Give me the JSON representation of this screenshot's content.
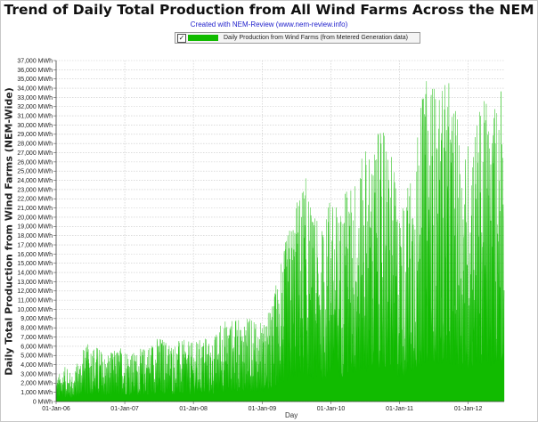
{
  "chart_data": {
    "type": "area",
    "title": "Trend of Daily Total Production from All Wind Farms Across the NEM",
    "subtitle": "Created with NEM-Review (www.nem-review.info)",
    "xlabel": "Day",
    "ylabel": "Daily Total Production from Wind Farms (NEM-Wide)",
    "ylim": [
      0,
      37000
    ],
    "xlim": [
      "2006-01-01",
      "2012-07-10"
    ],
    "x_ticks": [
      "01-Jan-06",
      "01-Jan-07",
      "01-Jan-08",
      "01-Jan-09",
      "01-Jan-10",
      "01-Jan-11",
      "01-Jan-12"
    ],
    "y_ticks": [
      "0 MWh",
      "1,000 MWh",
      "2,000 MWh",
      "3,000 MWh",
      "4,000 MWh",
      "5,000 MWh",
      "6,000 MWh",
      "7,000 MWh",
      "8,000 MWh",
      "9,000 MWh",
      "10,000 MWh",
      "11,000 MWh",
      "12,000 MWh",
      "13,000 MWh",
      "14,000 MWh",
      "15,000 MWh",
      "16,000 MWh",
      "17,000 MWh",
      "18,000 MWh",
      "19,000 MWh",
      "20,000 MWh",
      "21,000 MWh",
      "22,000 MWh",
      "23,000 MWh",
      "24,000 MWh",
      "25,000 MWh",
      "26,000 MWh",
      "27,000 MWh",
      "28,000 MWh",
      "29,000 MWh",
      "30,000 MWh",
      "31,000 MWh",
      "32,000 MWh",
      "33,000 MWh",
      "34,000 MWh",
      "35,000 MWh",
      "36,000 MWh",
      "37,000 MWh"
    ],
    "grid": true,
    "legend_position": "top-center",
    "series": [
      {
        "name": "Daily Production from Wind Farms (from Metered Generation data)",
        "color": "#11bb00",
        "points": [
          [
            "2006-01-01",
            2600
          ],
          [
            "2006-02-15",
            3800
          ],
          [
            "2006-04-01",
            2900
          ],
          [
            "2006-05-15",
            5300
          ],
          [
            "2006-07-01",
            6600
          ],
          [
            "2006-08-15",
            6000
          ],
          [
            "2006-10-01",
            4900
          ],
          [
            "2006-11-15",
            5800
          ],
          [
            "2007-01-01",
            6200
          ],
          [
            "2007-02-15",
            5400
          ],
          [
            "2007-04-01",
            5800
          ],
          [
            "2007-05-15",
            6500
          ],
          [
            "2007-07-01",
            7200
          ],
          [
            "2007-08-15",
            6800
          ],
          [
            "2007-10-01",
            6500
          ],
          [
            "2007-11-15",
            6700
          ],
          [
            "2008-01-01",
            6400
          ],
          [
            "2008-02-15",
            7000
          ],
          [
            "2008-04-01",
            6500
          ],
          [
            "2008-05-15",
            8000
          ],
          [
            "2008-07-01",
            9300
          ],
          [
            "2008-08-15",
            8800
          ],
          [
            "2008-10-01",
            9400
          ],
          [
            "2008-11-15",
            8600
          ],
          [
            "2009-01-01",
            8500
          ],
          [
            "2009-02-15",
            10300
          ],
          [
            "2009-04-01",
            14000
          ],
          [
            "2009-05-15",
            18500
          ],
          [
            "2009-07-01",
            22000
          ],
          [
            "2009-08-15",
            25000
          ],
          [
            "2009-10-01",
            20000
          ],
          [
            "2009-11-15",
            19000
          ],
          [
            "2010-01-01",
            22000
          ],
          [
            "2010-02-15",
            21500
          ],
          [
            "2010-04-01",
            23000
          ],
          [
            "2010-05-15",
            25500
          ],
          [
            "2010-07-01",
            27000
          ],
          [
            "2010-08-15",
            28500
          ],
          [
            "2010-10-01",
            29500
          ],
          [
            "2010-11-15",
            27000
          ],
          [
            "2011-01-01",
            21500
          ],
          [
            "2011-02-15",
            24000
          ],
          [
            "2011-04-01",
            29000
          ],
          [
            "2011-05-15",
            34500
          ],
          [
            "2011-06-15",
            37000
          ],
          [
            "2011-08-01",
            33000
          ],
          [
            "2011-09-15",
            35000
          ],
          [
            "2011-11-01",
            31000
          ],
          [
            "2011-12-15",
            28000
          ],
          [
            "2012-02-01",
            31000
          ],
          [
            "2012-03-15",
            33000
          ],
          [
            "2012-05-01",
            31500
          ],
          [
            "2012-06-01",
            34500
          ],
          [
            "2012-07-10",
            33000
          ]
        ]
      }
    ]
  }
}
